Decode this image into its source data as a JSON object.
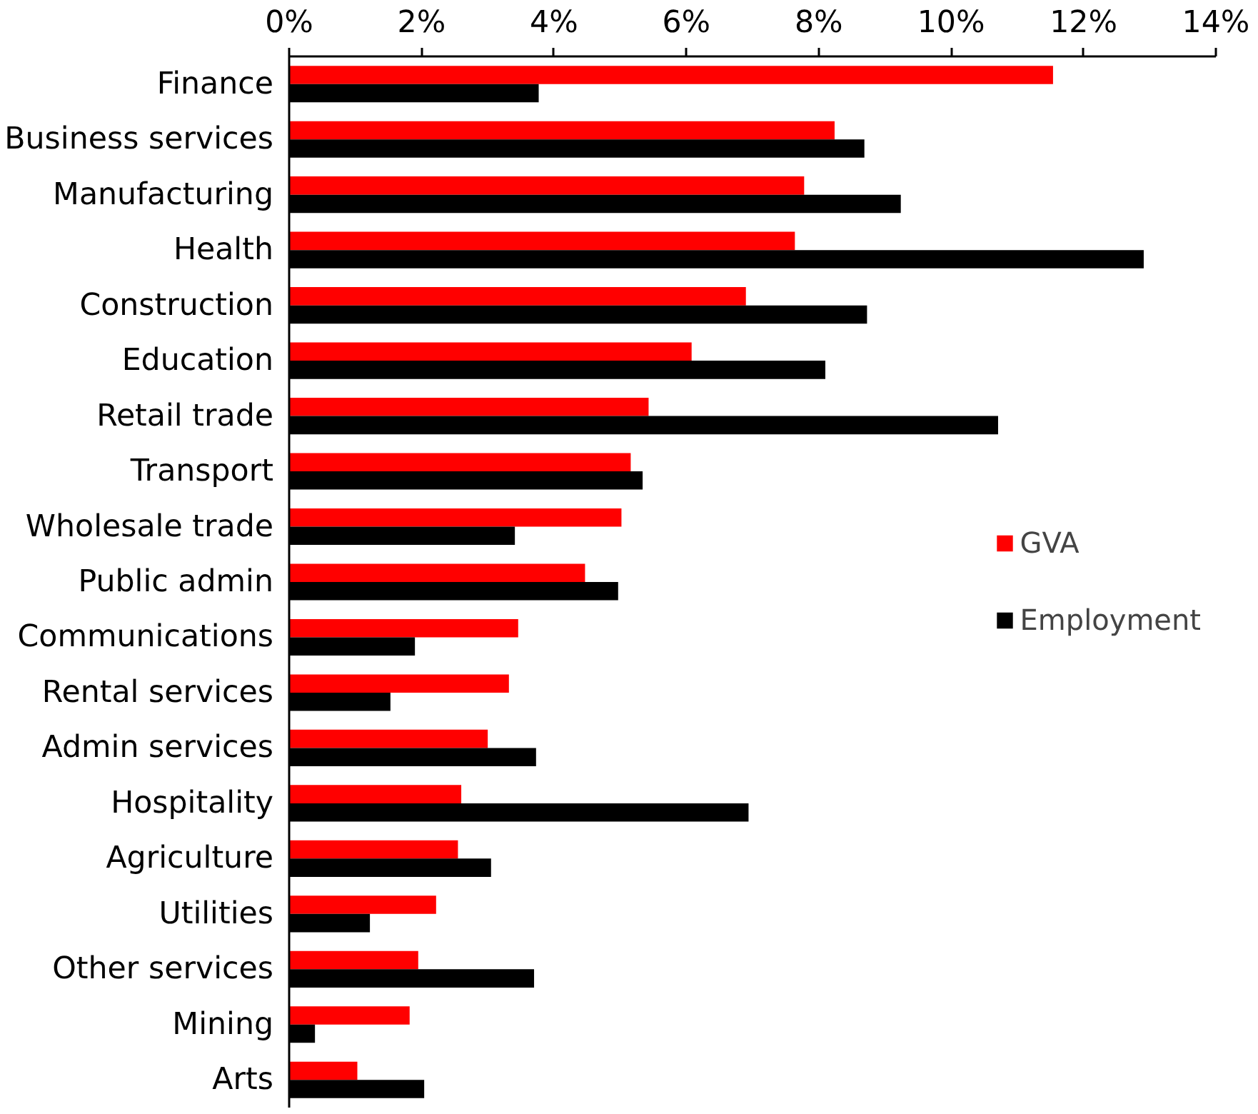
{
  "chart_data": {
    "type": "bar",
    "orientation": "horizontal",
    "categories": [
      "Finance",
      "Business services",
      "Manufacturing",
      "Health",
      "Construction",
      "Education",
      "Retail trade",
      "Transport",
      "Wholesale trade",
      "Public admin",
      "Communications",
      "Rental services",
      "Admin services",
      "Hospitality",
      "Agriculture",
      "Utilities",
      "Other services",
      "Mining",
      "Arts"
    ],
    "series": [
      {
        "name": "GVA",
        "color": "#ff0000",
        "values": [
          11.54,
          8.24,
          7.78,
          7.64,
          6.9,
          6.08,
          5.43,
          5.16,
          5.02,
          4.47,
          3.46,
          3.32,
          3.0,
          2.6,
          2.55,
          2.22,
          1.95,
          1.82,
          1.03
        ]
      },
      {
        "name": "Employment",
        "color": "#000000",
        "values": [
          3.77,
          8.69,
          9.24,
          12.91,
          8.73,
          8.1,
          10.71,
          5.34,
          3.41,
          4.97,
          1.9,
          1.53,
          3.73,
          6.94,
          3.05,
          1.22,
          3.7,
          0.39,
          2.04
        ]
      }
    ],
    "xlim": [
      0,
      14
    ],
    "xticks": [
      {
        "value": 0,
        "label": "0%"
      },
      {
        "value": 2,
        "label": "2%"
      },
      {
        "value": 4,
        "label": "4%"
      },
      {
        "value": 6,
        "label": "6%"
      },
      {
        "value": 8,
        "label": "8%"
      },
      {
        "value": 10,
        "label": "10%"
      },
      {
        "value": 12,
        "label": "12%"
      },
      {
        "value": 14,
        "label": "14%"
      }
    ],
    "grid": false,
    "legend": "right"
  }
}
